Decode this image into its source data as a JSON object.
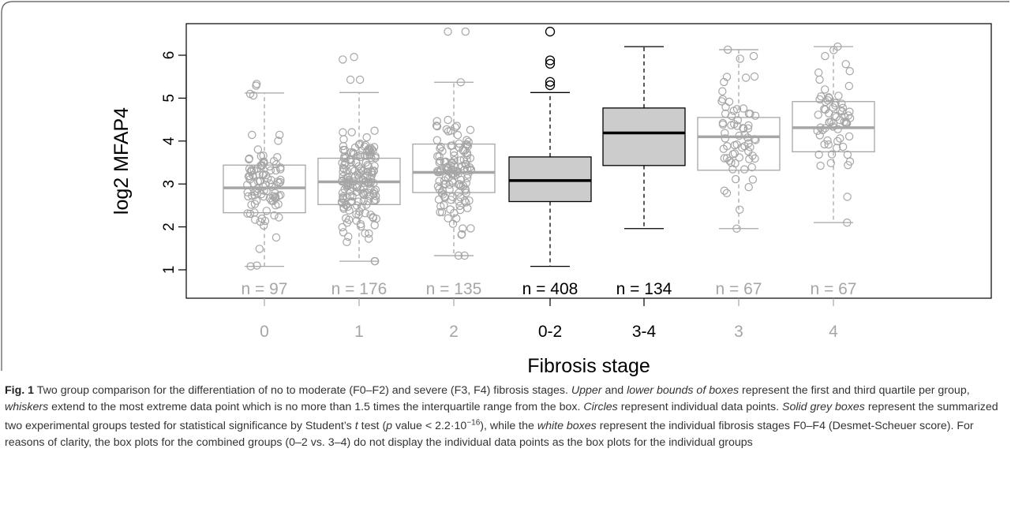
{
  "chart_data": {
    "type": "box",
    "xlabel": "Fibrosis stage",
    "ylabel": "log2 MFAP4",
    "ylim": [
      0.5,
      6.9
    ],
    "yticks": [
      1,
      2,
      3,
      4,
      5,
      6
    ],
    "categories": [
      "0",
      "1",
      "2",
      "0-2",
      "3-4",
      "3",
      "4"
    ],
    "counts": [
      "n = 97",
      "n = 176",
      "n = 135",
      "n = 408",
      "n = 134",
      "n = 67",
      "n = 67"
    ],
    "colors": {
      "individual": "#a6a6a6",
      "combined_fill": "#cccccc",
      "combined_line": "#000000"
    },
    "boxes": [
      {
        "category": "0",
        "group": "individual",
        "min": 1.08,
        "q1": 2.33,
        "median": 2.91,
        "q3": 3.44,
        "max": 5.12,
        "outliers": []
      },
      {
        "category": "1",
        "group": "individual",
        "min": 1.2,
        "q1": 2.52,
        "median": 3.05,
        "q3": 3.6,
        "max": 5.13,
        "outliers": []
      },
      {
        "category": "2",
        "group": "individual",
        "min": 1.33,
        "q1": 2.8,
        "median": 3.27,
        "q3": 3.93,
        "max": 5.37,
        "outliers": []
      },
      {
        "category": "0-2",
        "group": "combined",
        "min": 1.08,
        "q1": 2.59,
        "median": 3.08,
        "q3": 3.63,
        "max": 5.13,
        "outliers": [
          5.3,
          5.38,
          5.8,
          5.88,
          6.55
        ]
      },
      {
        "category": "3-4",
        "group": "combined",
        "min": 1.96,
        "q1": 3.43,
        "median": 4.19,
        "q3": 4.77,
        "max": 6.2,
        "outliers": []
      },
      {
        "category": "3",
        "group": "individual",
        "min": 1.96,
        "q1": 3.32,
        "median": 4.1,
        "q3": 4.55,
        "max": 6.13,
        "outliers": []
      },
      {
        "category": "4",
        "group": "individual",
        "min": 2.1,
        "q1": 3.75,
        "median": 4.31,
        "q3": 4.92,
        "max": 6.2,
        "outliers": []
      }
    ],
    "points": [
      {
        "category": "0",
        "n": 97,
        "low": 1.08,
        "high": 5.33,
        "center": 2.91,
        "spread": 0.75,
        "extra": [
          5.33,
          5.29,
          5.1,
          5.06,
          1.08,
          1.1
        ]
      },
      {
        "category": "1",
        "n": 176,
        "low": 1.2,
        "high": 5.96,
        "center": 3.05,
        "spread": 0.8,
        "extra": [
          5.96,
          5.9,
          5.43,
          5.43,
          1.2,
          1.2
        ]
      },
      {
        "category": "2",
        "n": 135,
        "low": 1.33,
        "high": 6.55,
        "center": 3.27,
        "spread": 0.8,
        "extra": [
          6.55,
          6.55,
          5.37,
          1.33,
          1.33
        ]
      },
      {
        "category": "3",
        "n": 67,
        "low": 1.96,
        "high": 6.13,
        "center": 4.1,
        "spread": 0.9,
        "extra": [
          6.13,
          5.98,
          5.92,
          1.96,
          2.4
        ]
      },
      {
        "category": "4",
        "n": 67,
        "low": 2.1,
        "high": 6.2,
        "center": 4.31,
        "spread": 0.85,
        "extra": [
          6.2,
          6.12,
          5.98,
          2.1,
          2.7
        ]
      }
    ]
  },
  "caption": {
    "label": "Fig. 1",
    "text": [
      {
        "t": "  Two group comparison for the differentiation of no to moderate (F0–F2) and severe (F3, F4) fibrosis stages. ",
        "i": false
      },
      {
        "t": "Upper",
        "i": true
      },
      {
        "t": " and ",
        "i": false
      },
      {
        "t": "lower bounds of boxes",
        "i": true
      },
      {
        "t": " represent the first and third quartile per group, ",
        "i": false
      },
      {
        "t": "whiskers",
        "i": true
      },
      {
        "t": " extend to the most extreme data point which is no more than 1.5 times the interquartile range from the box. ",
        "i": false
      },
      {
        "t": "Circles",
        "i": true
      },
      {
        "t": " represent individual data points. ",
        "i": false
      },
      {
        "t": "Solid grey boxes",
        "i": true
      },
      {
        "t": " represent the summarized two experimental groups tested for statistical significance by Student’s ",
        "i": false
      },
      {
        "t": "t",
        "i": true
      },
      {
        "t": " test (",
        "i": false
      },
      {
        "t": "p",
        "i": true
      },
      {
        "t": " value < 2.2·10",
        "i": false
      },
      {
        "t": "−16",
        "i": false,
        "sup": true
      },
      {
        "t": "), while the ",
        "i": false
      },
      {
        "t": "white boxes",
        "i": true
      },
      {
        "t": " represent the individual fibrosis stages F0–F4 (Desmet-Scheuer score). For reasons of clarity, the box plots for the combined groups (0–2 vs. 3–4) do not display the individual data points as the box plots for the individual groups",
        "i": false
      }
    ]
  }
}
